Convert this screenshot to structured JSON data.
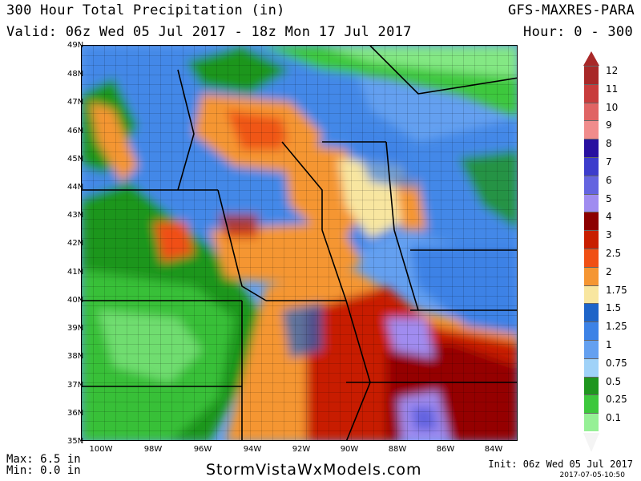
{
  "header": {
    "title": "300 Hour Total Precipitation (in)",
    "valid": "Valid: 06z Wed 05 Jul 2017 - 18z Mon 17 Jul 2017",
    "model": "GFS-MAXRES-PARA",
    "hours": "Hour: 0 - 300"
  },
  "axes": {
    "lat_labels": [
      "49N",
      "48N",
      "47N",
      "46N",
      "45N",
      "44N",
      "43N",
      "42N",
      "41N",
      "40N",
      "39N",
      "38N",
      "37N",
      "36N",
      "35N"
    ],
    "lon_labels": [
      "100W",
      "98W",
      "96W",
      "94W",
      "92W",
      "90W",
      "88W",
      "86W",
      "84W"
    ]
  },
  "legend": {
    "units": "in",
    "levels": [
      "12",
      "11",
      "10",
      "9",
      "8",
      "7",
      "6",
      "5",
      "4",
      "3",
      "2.5",
      "2",
      "1.75",
      "1.5",
      "1.25",
      "1",
      "0.75",
      "0.5",
      "0.25",
      "0.1"
    ],
    "colors": [
      "#a82828",
      "#c83c3c",
      "#e06464",
      "#f08c8c",
      "#2810a0",
      "#3c3ccc",
      "#6464e0",
      "#a08cf0",
      "#8c0000",
      "#c81e00",
      "#f05014",
      "#f59632",
      "#f8e6a0",
      "#1e64c8",
      "#3c82e6",
      "#64a0f0",
      "#a0d2f8",
      "#1e961e",
      "#3cc83c",
      "#96f096"
    ],
    "below_color": "#ffffff"
  },
  "footer": {
    "max": "Max: 6.5 in",
    "min": "Min: 0.0 in",
    "site": "StormVistaWxModels.com",
    "init": "Init: 06z Wed 05 Jul 2017",
    "stamp": "2017-07-05-10:50"
  }
}
